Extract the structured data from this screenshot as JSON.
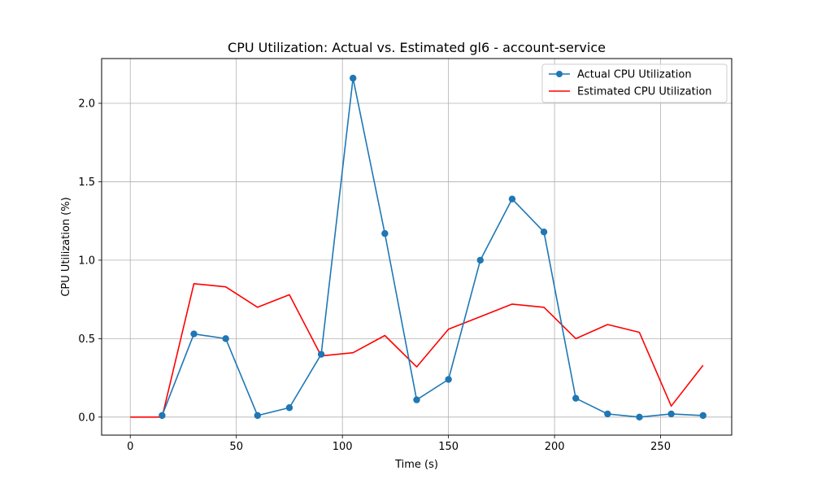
{
  "chart_data": {
    "type": "line",
    "title": "CPU Utilization: Actual vs. Estimated gl6 - account-service",
    "xlabel": "Time (s)",
    "ylabel": "CPU Utilization (%)",
    "xlim": [
      -13.5,
      283.5
    ],
    "ylim": [
      -0.115,
      2.285
    ],
    "xticks": [
      0,
      50,
      100,
      150,
      200,
      250
    ],
    "xtick_labels": [
      "0",
      "50",
      "100",
      "150",
      "200",
      "250"
    ],
    "yticks": [
      0.0,
      0.5,
      1.0,
      1.5,
      2.0
    ],
    "ytick_labels": [
      "0.0",
      "0.5",
      "1.0",
      "1.5",
      "2.0"
    ],
    "grid": true,
    "legend_position": "top-right",
    "series": [
      {
        "name": "Actual CPU Utilization",
        "color": "#1f77b4",
        "marker": "circle",
        "x": [
          15,
          30,
          45,
          60,
          75,
          90,
          105,
          120,
          135,
          150,
          165,
          180,
          195,
          210,
          225,
          240,
          255,
          270
        ],
        "y": [
          0.01,
          0.53,
          0.5,
          0.01,
          0.06,
          0.4,
          2.16,
          1.17,
          0.11,
          0.24,
          1.0,
          1.39,
          1.18,
          0.12,
          0.02,
          0.0,
          0.02,
          0.01
        ]
      },
      {
        "name": "Estimated CPU Utilization",
        "color": "#ff0000",
        "marker": "none",
        "x": [
          0,
          15,
          30,
          45,
          60,
          75,
          90,
          105,
          120,
          135,
          150,
          165,
          180,
          195,
          210,
          225,
          240,
          255,
          270
        ],
        "y": [
          0.0,
          0.0,
          0.85,
          0.83,
          0.7,
          0.78,
          0.39,
          0.41,
          0.52,
          0.32,
          0.56,
          0.64,
          0.72,
          0.7,
          0.5,
          0.59,
          0.54,
          0.07,
          0.33
        ]
      }
    ]
  }
}
